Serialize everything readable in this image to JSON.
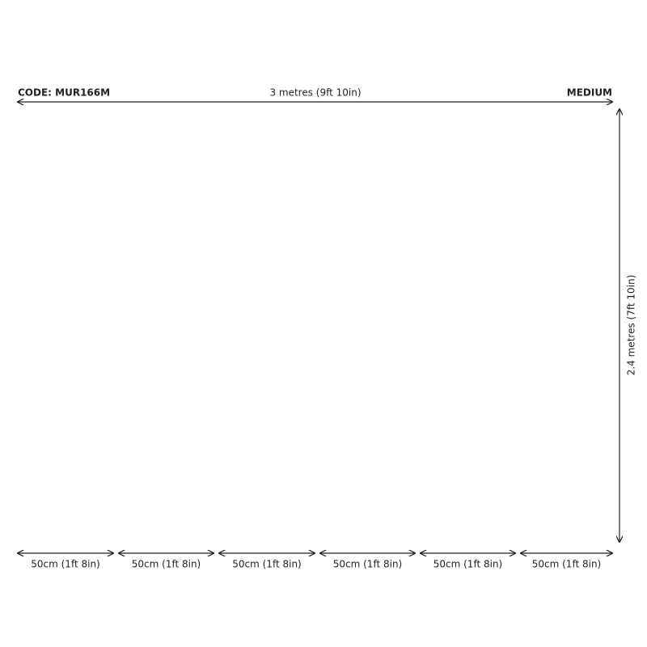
{
  "header": {
    "code": "CODE: MUR166M",
    "width": "3 metres (9ft 10in)",
    "size": "MEDIUM"
  },
  "height": "2.4 metres (7ft 10in)",
  "panels": [
    {
      "width": "50cm (1ft 8in)"
    },
    {
      "width": "50cm (1ft 8in)"
    },
    {
      "width": "50cm (1ft 8in)"
    },
    {
      "width": "50cm (1ft 8in)"
    },
    {
      "width": "50cm (1ft 8in)"
    },
    {
      "width": "50cm (1ft 8in)"
    }
  ]
}
